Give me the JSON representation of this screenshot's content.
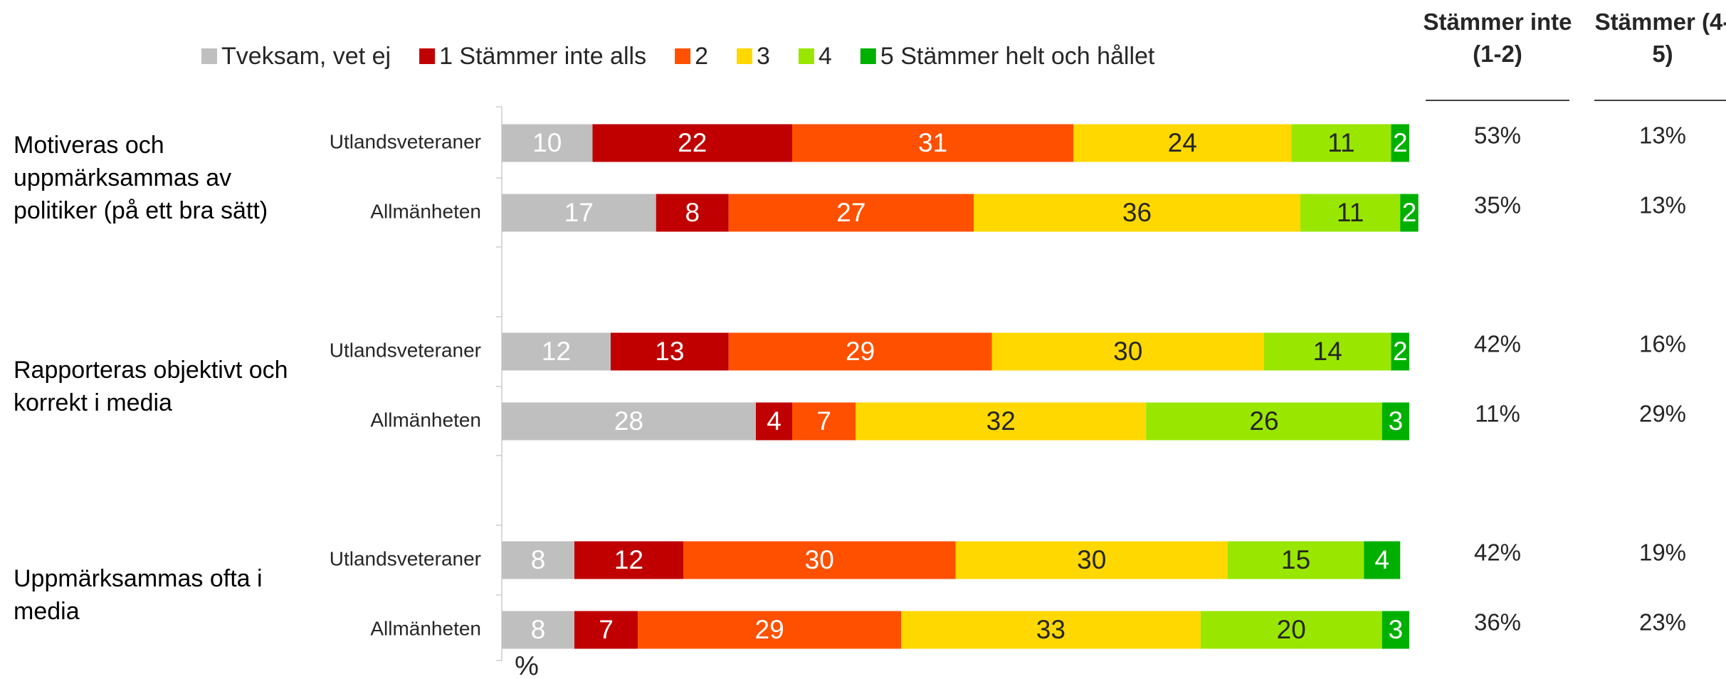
{
  "chart_data": {
    "type": "bar",
    "orientation": "horizontal",
    "stacked": true,
    "xlabel": "%",
    "xlim": [
      0,
      100
    ],
    "groups": [
      {
        "label": "Motiveras och uppmärksammas av politiker (på ett bra sätt)",
        "categories": [
          "Utlandsveteraner",
          "Allmänheten"
        ]
      },
      {
        "label": "Rapporteras objektivt och korrekt i media",
        "categories": [
          "Utlandsveteraner",
          "Allmänheten"
        ]
      },
      {
        "label": "Uppmärksammas ofta i media",
        "categories": [
          "Utlandsveteraner",
          "Allmänheten"
        ]
      }
    ],
    "series": [
      {
        "name": "Tveksam, vet ej",
        "color": "#bfbfbf",
        "values": [
          10,
          17,
          12,
          28,
          8,
          8
        ]
      },
      {
        "name": "1 Stämmer inte alls",
        "color": "#c00000",
        "values": [
          22,
          8,
          13,
          4,
          12,
          7
        ]
      },
      {
        "name": "2",
        "color": "#ff5000",
        "values": [
          31,
          27,
          29,
          7,
          30,
          29
        ]
      },
      {
        "name": "3",
        "color": "#ffd800",
        "values": [
          24,
          36,
          30,
          32,
          30,
          33
        ]
      },
      {
        "name": "4",
        "color": "#99e600",
        "values": [
          11,
          11,
          14,
          26,
          15,
          20
        ]
      },
      {
        "name": "5 Stämmer helt och hållet",
        "color": "#00b000",
        "values": [
          2,
          2,
          2,
          3,
          4,
          3
        ]
      }
    ],
    "columns": [
      {
        "name": "Stämmer inte (1-2)",
        "values": [
          53,
          35,
          42,
          11,
          42,
          36
        ],
        "value_labels": [
          "53%",
          "35%",
          "42%",
          "11%",
          "42%",
          "36%"
        ]
      },
      {
        "name": "Stämmer (4-5)",
        "values": [
          13,
          13,
          16,
          29,
          19,
          23
        ],
        "value_labels": [
          "13%",
          "13%",
          "16%",
          "29%",
          "19%",
          "23%"
        ]
      }
    ]
  }
}
